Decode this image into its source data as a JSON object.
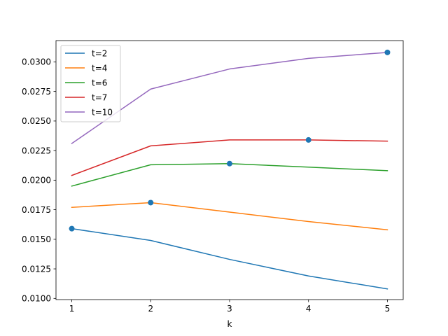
{
  "chart_data": {
    "type": "line",
    "title": "",
    "xlabel": "k",
    "ylabel": "",
    "x": [
      1,
      2,
      3,
      4,
      5
    ],
    "xlim": [
      0.8,
      5.2
    ],
    "ylim": [
      0.0099,
      0.0318
    ],
    "x_ticks": [
      1,
      2,
      3,
      4,
      5
    ],
    "x_tick_labels": [
      "1",
      "2",
      "3",
      "4",
      "5"
    ],
    "y_ticks": [
      0.01,
      0.0125,
      0.015,
      0.0175,
      0.02,
      0.0225,
      0.025,
      0.0275,
      0.03
    ],
    "y_tick_labels": [
      "0.0100",
      "0.0125",
      "0.0150",
      "0.0175",
      "0.0200",
      "0.0225",
      "0.0250",
      "0.0275",
      "0.0300"
    ],
    "grid": false,
    "legend_position": "top-left",
    "series": [
      {
        "name": "t=2",
        "color": "#1f77b4",
        "values": [
          0.0159,
          0.0149,
          0.0133,
          0.0119,
          0.0108
        ],
        "marker_x": 1,
        "marker_y": 0.0159
      },
      {
        "name": "t=4",
        "color": "#ff7f0e",
        "values": [
          0.0177,
          0.0181,
          0.0173,
          0.0165,
          0.0158
        ],
        "marker_x": 2,
        "marker_y": 0.0181
      },
      {
        "name": "t=6",
        "color": "#2ca02c",
        "values": [
          0.0195,
          0.0213,
          0.0214,
          0.0211,
          0.0208
        ],
        "marker_x": 3,
        "marker_y": 0.0214
      },
      {
        "name": "t=7",
        "color": "#d62728",
        "values": [
          0.0204,
          0.0229,
          0.0234,
          0.0234,
          0.0233
        ],
        "marker_x": 4,
        "marker_y": 0.0234
      },
      {
        "name": "t=10",
        "color": "#9467bd",
        "values": [
          0.0231,
          0.0277,
          0.0294,
          0.0303,
          0.0308
        ],
        "marker_x": 5,
        "marker_y": 0.0308
      }
    ],
    "marker_color": "#1f77b4"
  }
}
